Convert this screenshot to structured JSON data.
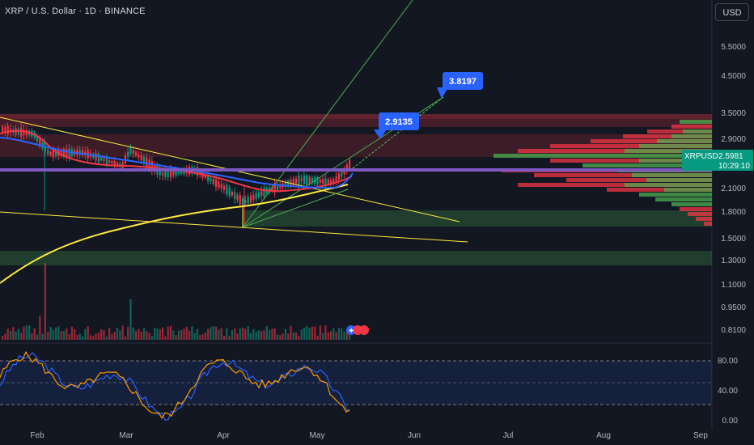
{
  "header": {
    "title": "XRP / U.S. Dollar · 1D · BINANCE",
    "currency_button": "USD"
  },
  "price_axis": {
    "ticks": [
      "5.5000",
      "4.5000",
      "3.5000",
      "2.9000",
      "2.1000",
      "1.8000",
      "1.5000",
      "1.3000",
      "1.1000",
      "0.9500",
      "0.8100"
    ]
  },
  "oscillator_axis": {
    "ticks": [
      "80.00",
      "40.00",
      "0.00"
    ]
  },
  "time_axis": {
    "ticks": [
      "Feb",
      "Mar",
      "Apr",
      "May",
      "Jun",
      "Jul",
      "Aug",
      "Sep"
    ]
  },
  "price_badge": {
    "symbol": "XRPUSD",
    "price": "2.5981",
    "countdown": "10:29:10",
    "color": "#089981"
  },
  "targets": {
    "target1": "2.9135",
    "target2": "3.8197",
    "color": "#2962ff"
  },
  "colors": {
    "up": "#089981",
    "down": "#f23645",
    "ema_red": "#f23645",
    "ema_blue": "#2962ff",
    "ma_yellow": "#ffeb3b",
    "poc_purple": "#7e57c2",
    "trend_green": "#4caf50",
    "stoch_k": "#2962ff",
    "stoch_d": "#ff9800"
  },
  "chart_data": {
    "type": "line",
    "title": "XRP / U.S. Dollar · 1D · BINANCE",
    "x": [
      "Feb",
      "Mar",
      "Apr",
      "May"
    ],
    "series": [
      {
        "name": "XRPUSD",
        "values": [
          3.05,
          2.55,
          2.05,
          2.12
        ]
      }
    ],
    "last_price": 2.5981,
    "targets": [
      2.9135,
      3.8197
    ],
    "oscillator": {
      "ylim": [
        0,
        100
      ],
      "levels": [
        80,
        40,
        0
      ]
    }
  }
}
